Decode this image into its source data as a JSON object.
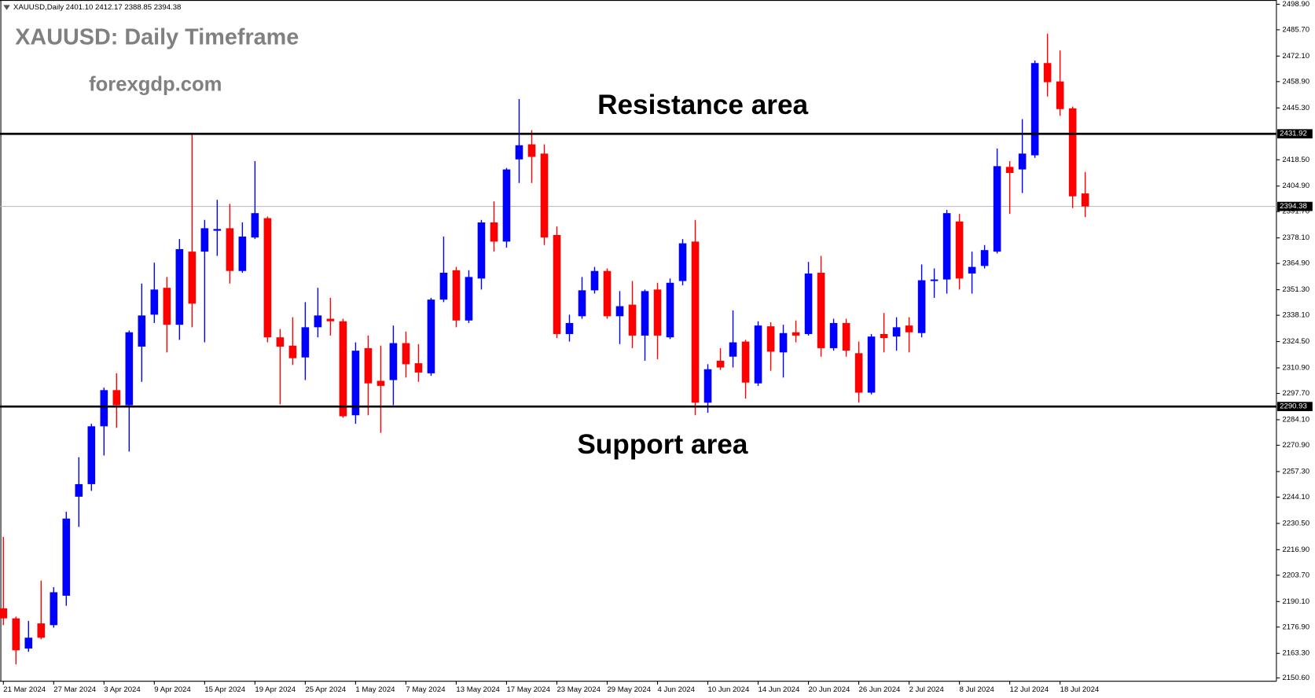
{
  "header": "XAUUSD,Daily  2401.10 2412.17 2388.85 2394.38",
  "chart_data": {
    "type": "candlestick",
    "title": "XAUUSD: Daily Timeframe",
    "subtitle": "forexgdp.com",
    "categories": [
      "21 Mar 2024",
      null,
      null,
      null,
      "27 Mar 2024",
      null,
      null,
      null,
      "3 Apr 2024",
      null,
      null,
      null,
      "9 Apr 2024",
      null,
      null,
      null,
      "15 Apr 2024",
      null,
      null,
      null,
      "19 Apr 2024",
      null,
      null,
      null,
      "25 Apr 2024",
      null,
      null,
      null,
      "1 May 2024",
      null,
      null,
      null,
      "7 May 2024",
      null,
      null,
      null,
      "13 May 2024",
      null,
      null,
      null,
      "17 May 2024",
      null,
      null,
      null,
      "23 May 2024",
      null,
      null,
      null,
      "29 May 2024",
      null,
      null,
      null,
      "4 Jun 2024",
      null,
      null,
      null,
      "10 Jun 2024",
      null,
      null,
      null,
      "14 Jun 2024",
      null,
      null,
      null,
      "20 Jun 2024",
      null,
      null,
      null,
      "26 Jun 2024",
      null,
      null,
      null,
      "2 Jul 2024",
      null,
      null,
      null,
      "8 Jul 2024",
      null,
      null,
      null,
      "12 Jul 2024",
      null,
      null,
      null,
      "18 Jul 2024",
      null,
      null
    ],
    "open": [
      2186.6,
      2181.4,
      2165.8,
      2178.8,
      2177.9,
      2193.1,
      2244.3,
      2250.8,
      2280.7,
      2299.4,
      2291.6,
      2321.9,
      2338.4,
      2352.3,
      2333.2,
      2371.0,
      2371.0,
      2381.8,
      2383.1,
      2361.0,
      2378.3,
      2388.3,
      2326.7,
      2322.4,
      2316.3,
      2331.9,
      2336.3,
      2335.0,
      2286.4,
      2321.1,
      2304.2,
      2304.6,
      2323.7,
      2313.3,
      2308.1,
      2346.2,
      2361.4,
      2335.4,
      2357.1,
      2386.1,
      2376.2,
      2418.7,
      2426.5,
      2421.7,
      2379.6,
      2328.4,
      2337.6,
      2351.0,
      2361.0,
      2337.6,
      2343.6,
      2327.6,
      2351.4,
      2326.7,
      2355.8,
      2376.2,
      2292.9,
      2314.6,
      2316.7,
      2324.5,
      2302.9,
      2332.4,
      2318.9,
      2329.3,
      2328.4,
      2360.1,
      2321.1,
      2334.1,
      2318.5,
      2298.1,
      2328.4,
      2327.1,
      2332.8,
      2328.9,
      2355.8,
      2356.6,
      2386.6,
      2359.7,
      2363.6,
      2371.0,
      2414.8,
      2413.5,
      2420.8,
      2468.5,
      2459.0,
      2445.1,
      2401.1
    ],
    "high": [
      2223.5,
      2182.3,
      2180.1,
      2200.9,
      2197.5,
      2236.5,
      2264.7,
      2282.0,
      2300.7,
      2308.1,
      2330.2,
      2354.5,
      2365.3,
      2357.9,
      2377.5,
      2431.7,
      2387.4,
      2397.8,
      2395.7,
      2386.1,
      2417.8,
      2389.2,
      2331.0,
      2337.1,
      2344.9,
      2352.3,
      2347.1,
      2336.3,
      2324.1,
      2327.6,
      2322.4,
      2332.8,
      2329.7,
      2323.2,
      2347.1,
      2378.8,
      2363.1,
      2361.4,
      2387.4,
      2397.0,
      2414.3,
      2449.9,
      2433.8,
      2426.5,
      2384.0,
      2338.4,
      2357.9,
      2363.1,
      2362.3,
      2350.6,
      2355.8,
      2351.4,
      2354.9,
      2357.1,
      2377.5,
      2387.4,
      2312.8,
      2321.1,
      2340.6,
      2325.4,
      2335.0,
      2334.5,
      2333.2,
      2335.4,
      2365.7,
      2368.8,
      2336.3,
      2336.3,
      2324.5,
      2328.4,
      2339.3,
      2337.1,
      2337.1,
      2364.4,
      2362.3,
      2392.6,
      2390.5,
      2371.0,
      2374.4,
      2424.3,
      2417.8,
      2439.5,
      2469.8,
      2483.7,
      2475.0,
      2446.0,
      2412.17
    ],
    "low": [
      2177.9,
      2157.6,
      2164.1,
      2170.6,
      2176.6,
      2187.9,
      2228.7,
      2247.3,
      2265.6,
      2279.9,
      2267.7,
      2303.7,
      2334.1,
      2318.9,
      2325.4,
      2331.9,
      2324.1,
      2368.8,
      2354.5,
      2360.1,
      2377.5,
      2324.1,
      2292.0,
      2312.4,
      2304.6,
      2326.7,
      2327.6,
      2285.1,
      2282.0,
      2286.4,
      2277.3,
      2291.6,
      2305.9,
      2303.7,
      2306.8,
      2344.9,
      2331.9,
      2334.1,
      2351.4,
      2371.0,
      2373.1,
      2406.5,
      2406.5,
      2374.4,
      2326.3,
      2324.5,
      2336.3,
      2349.3,
      2336.3,
      2323.2,
      2321.1,
      2314.6,
      2315.4,
      2325.8,
      2353.6,
      2286.4,
      2287.7,
      2309.8,
      2311.1,
      2295.0,
      2301.6,
      2309.4,
      2305.9,
      2324.1,
      2327.6,
      2316.7,
      2319.8,
      2316.7,
      2292.9,
      2297.2,
      2318.9,
      2319.8,
      2318.9,
      2326.7,
      2347.1,
      2349.3,
      2351.4,
      2349.3,
      2362.3,
      2370.1,
      2390.5,
      2401.3,
      2419.5,
      2451.2,
      2441.2,
      2393.5,
      2388.85
    ],
    "close": [
      2181.4,
      2164.9,
      2171.4,
      2171.4,
      2194.9,
      2233.0,
      2250.8,
      2280.7,
      2299.4,
      2291.6,
      2329.3,
      2338.0,
      2351.4,
      2333.2,
      2372.3,
      2344.1,
      2383.1,
      2382.7,
      2361.0,
      2378.8,
      2390.9,
      2326.7,
      2321.9,
      2315.9,
      2331.9,
      2338.0,
      2335.0,
      2285.9,
      2319.8,
      2302.9,
      2301.6,
      2323.7,
      2312.8,
      2308.5,
      2346.2,
      2360.1,
      2335.4,
      2357.9,
      2386.1,
      2376.2,
      2413.5,
      2426.0,
      2420.0,
      2378.3,
      2328.4,
      2334.1,
      2351.0,
      2361.0,
      2337.6,
      2342.8,
      2327.6,
      2350.6,
      2327.6,
      2354.9,
      2375.3,
      2292.9,
      2310.2,
      2311.1,
      2324.1,
      2303.3,
      2332.8,
      2319.3,
      2328.9,
      2327.6,
      2359.7,
      2321.1,
      2334.1,
      2319.8,
      2298.1,
      2327.1,
      2326.3,
      2331.9,
      2329.3,
      2356.2,
      2356.6,
      2390.9,
      2357.1,
      2363.1,
      2371.8,
      2415.2,
      2411.7,
      2421.7,
      2468.5,
      2458.6,
      2444.7,
      2399.6,
      2394.38
    ],
    "up_color": "#0000ff",
    "down_color": "#ff0000",
    "ylim": [
      2148.9,
      2501.1
    ],
    "yticks": [
      {
        "value": 2498.9,
        "label": "2498.90"
      },
      {
        "value": 2485.7,
        "label": "2485.70"
      },
      {
        "value": 2472.1,
        "label": "2472.10"
      },
      {
        "value": 2458.9,
        "label": "2458.90"
      },
      {
        "value": 2445.3,
        "label": "2445.30"
      },
      {
        "value": 2418.5,
        "label": "2418.50"
      },
      {
        "value": 2404.9,
        "label": "2404.90"
      },
      {
        "value": 2391.7,
        "label": "2391.70"
      },
      {
        "value": 2378.1,
        "label": "2378.10"
      },
      {
        "value": 2364.9,
        "label": "2364.90"
      },
      {
        "value": 2351.3,
        "label": "2351.30"
      },
      {
        "value": 2338.1,
        "label": "2338.10"
      },
      {
        "value": 2324.5,
        "label": "2324.50"
      },
      {
        "value": 2310.9,
        "label": "2310.90"
      },
      {
        "value": 2297.7,
        "label": "2297.70"
      },
      {
        "value": 2284.1,
        "label": "2284.10"
      },
      {
        "value": 2270.9,
        "label": "2270.90"
      },
      {
        "value": 2257.3,
        "label": "2257.30"
      },
      {
        "value": 2244.1,
        "label": "2244.10"
      },
      {
        "value": 2230.5,
        "label": "2230.50"
      },
      {
        "value": 2216.9,
        "label": "2216.90"
      },
      {
        "value": 2203.7,
        "label": "2203.70"
      },
      {
        "value": 2190.1,
        "label": "2190.10"
      },
      {
        "value": 2176.9,
        "label": "2176.90"
      },
      {
        "value": 2163.3,
        "label": "2163.30"
      },
      {
        "value": 2150.6,
        "label": "2150.60"
      }
    ],
    "levels": [
      {
        "value": 2431.92,
        "annotation": "Resistance area"
      },
      {
        "value": 2290.93,
        "annotation": "Support area"
      }
    ],
    "current_price": 2394.38,
    "grid": false
  }
}
